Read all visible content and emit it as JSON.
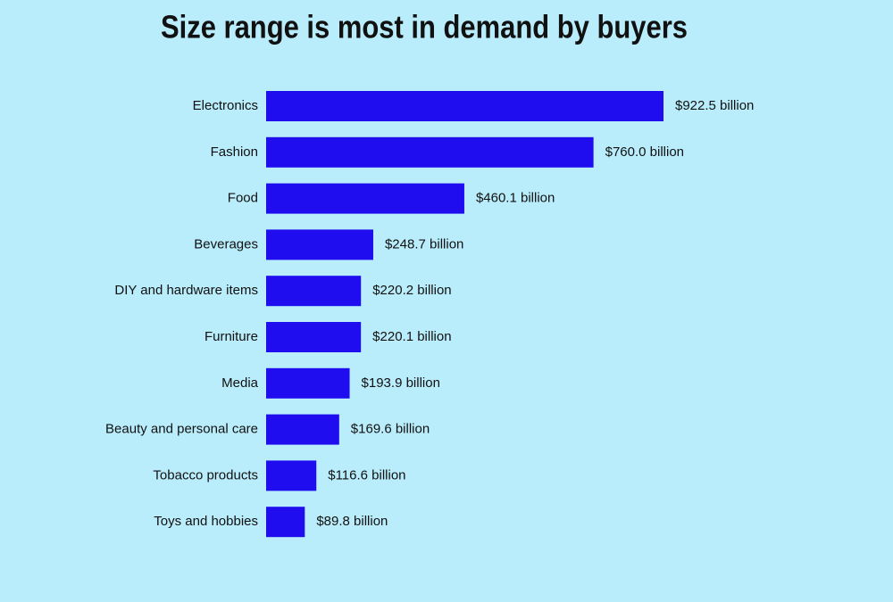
{
  "chart_data": {
    "type": "hbar",
    "title": "Size range is most in demand by buyers",
    "categories": [
      "Electronics",
      "Fashion",
      "Food",
      "Beverages",
      "DIY and hardware items",
      "Furniture",
      "Media",
      "Beauty and personal care",
      "Tobacco products",
      "Toys and hobbies"
    ],
    "values": [
      922.5,
      760.0,
      460.1,
      248.7,
      220.2,
      220.1,
      193.9,
      169.6,
      116.6,
      89.8
    ],
    "value_labels": [
      "$922.5 billion",
      "$760.0 billion",
      "$460.1 billion",
      "$248.7 billion",
      "$220.2 billion",
      "$220.1 billion",
      "$193.9 billion",
      "$169.6 billion",
      "$116.6 billion",
      "$89.8 billion"
    ],
    "color": "#1f0df0"
  }
}
